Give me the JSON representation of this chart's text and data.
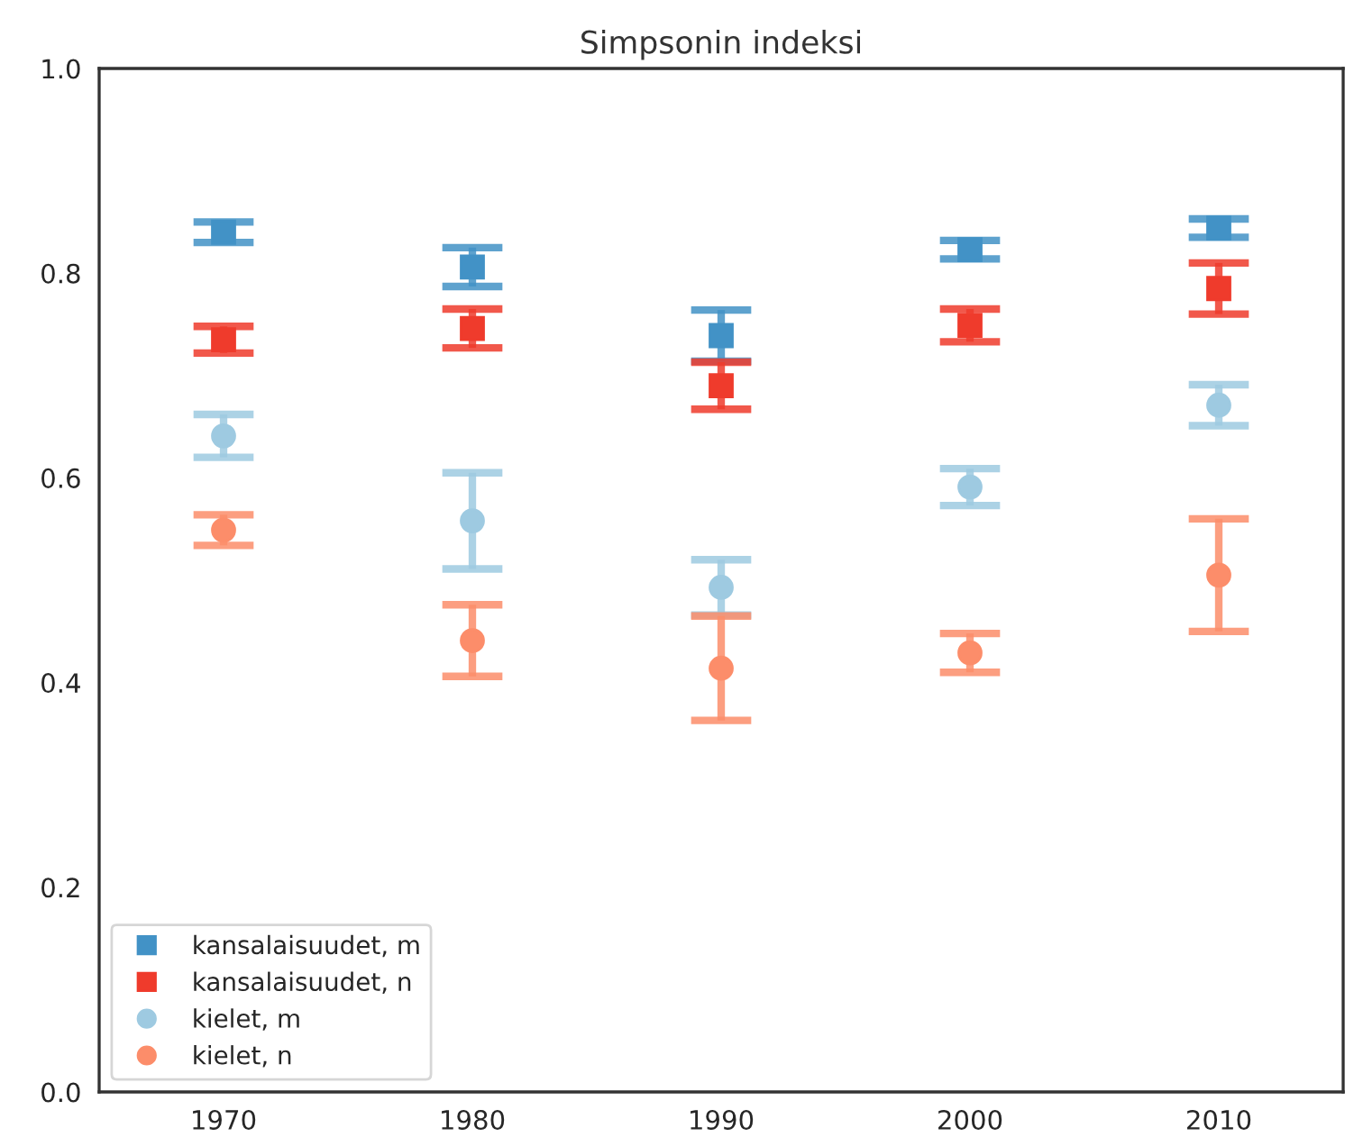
{
  "chart_data": {
    "type": "scatter",
    "title": "Simpsonin indeksi",
    "categories": [
      "1970",
      "1980",
      "1990",
      "2000",
      "2010"
    ],
    "series": [
      {
        "name": "kansalaisuudet, m",
        "color": "#4292c6",
        "marker": "square",
        "values": [
          0.84,
          0.806,
          0.739,
          0.823,
          0.844
        ],
        "errors": [
          0.01,
          0.019,
          0.025,
          0.009,
          0.009
        ]
      },
      {
        "name": "kansalaisuudet, n",
        "color": "#ef3b2c",
        "marker": "square",
        "values": [
          0.735,
          0.746,
          0.69,
          0.749,
          0.785
        ],
        "errors": [
          0.013,
          0.019,
          0.023,
          0.016,
          0.025
        ]
      },
      {
        "name": "kielet, m",
        "color": "#9ecae1",
        "marker": "circle",
        "values": [
          0.641,
          0.558,
          0.493,
          0.591,
          0.671
        ],
        "errors": [
          0.021,
          0.047,
          0.027,
          0.018,
          0.02
        ]
      },
      {
        "name": "kielet, n",
        "color": "#fc8d6a",
        "marker": "circle",
        "values": [
          0.549,
          0.441,
          0.414,
          0.429,
          0.505
        ],
        "errors": [
          0.015,
          0.035,
          0.051,
          0.019,
          0.055
        ]
      }
    ],
    "ylim": [
      0.0,
      1.0
    ],
    "yticks": [
      {
        "value": 0,
        "label": "0.0"
      },
      0.2,
      0.4,
      0.6,
      0.8,
      {
        "value": 1,
        "label": "1.0"
      }
    ],
    "grid": false,
    "legend": "bottom left"
  }
}
